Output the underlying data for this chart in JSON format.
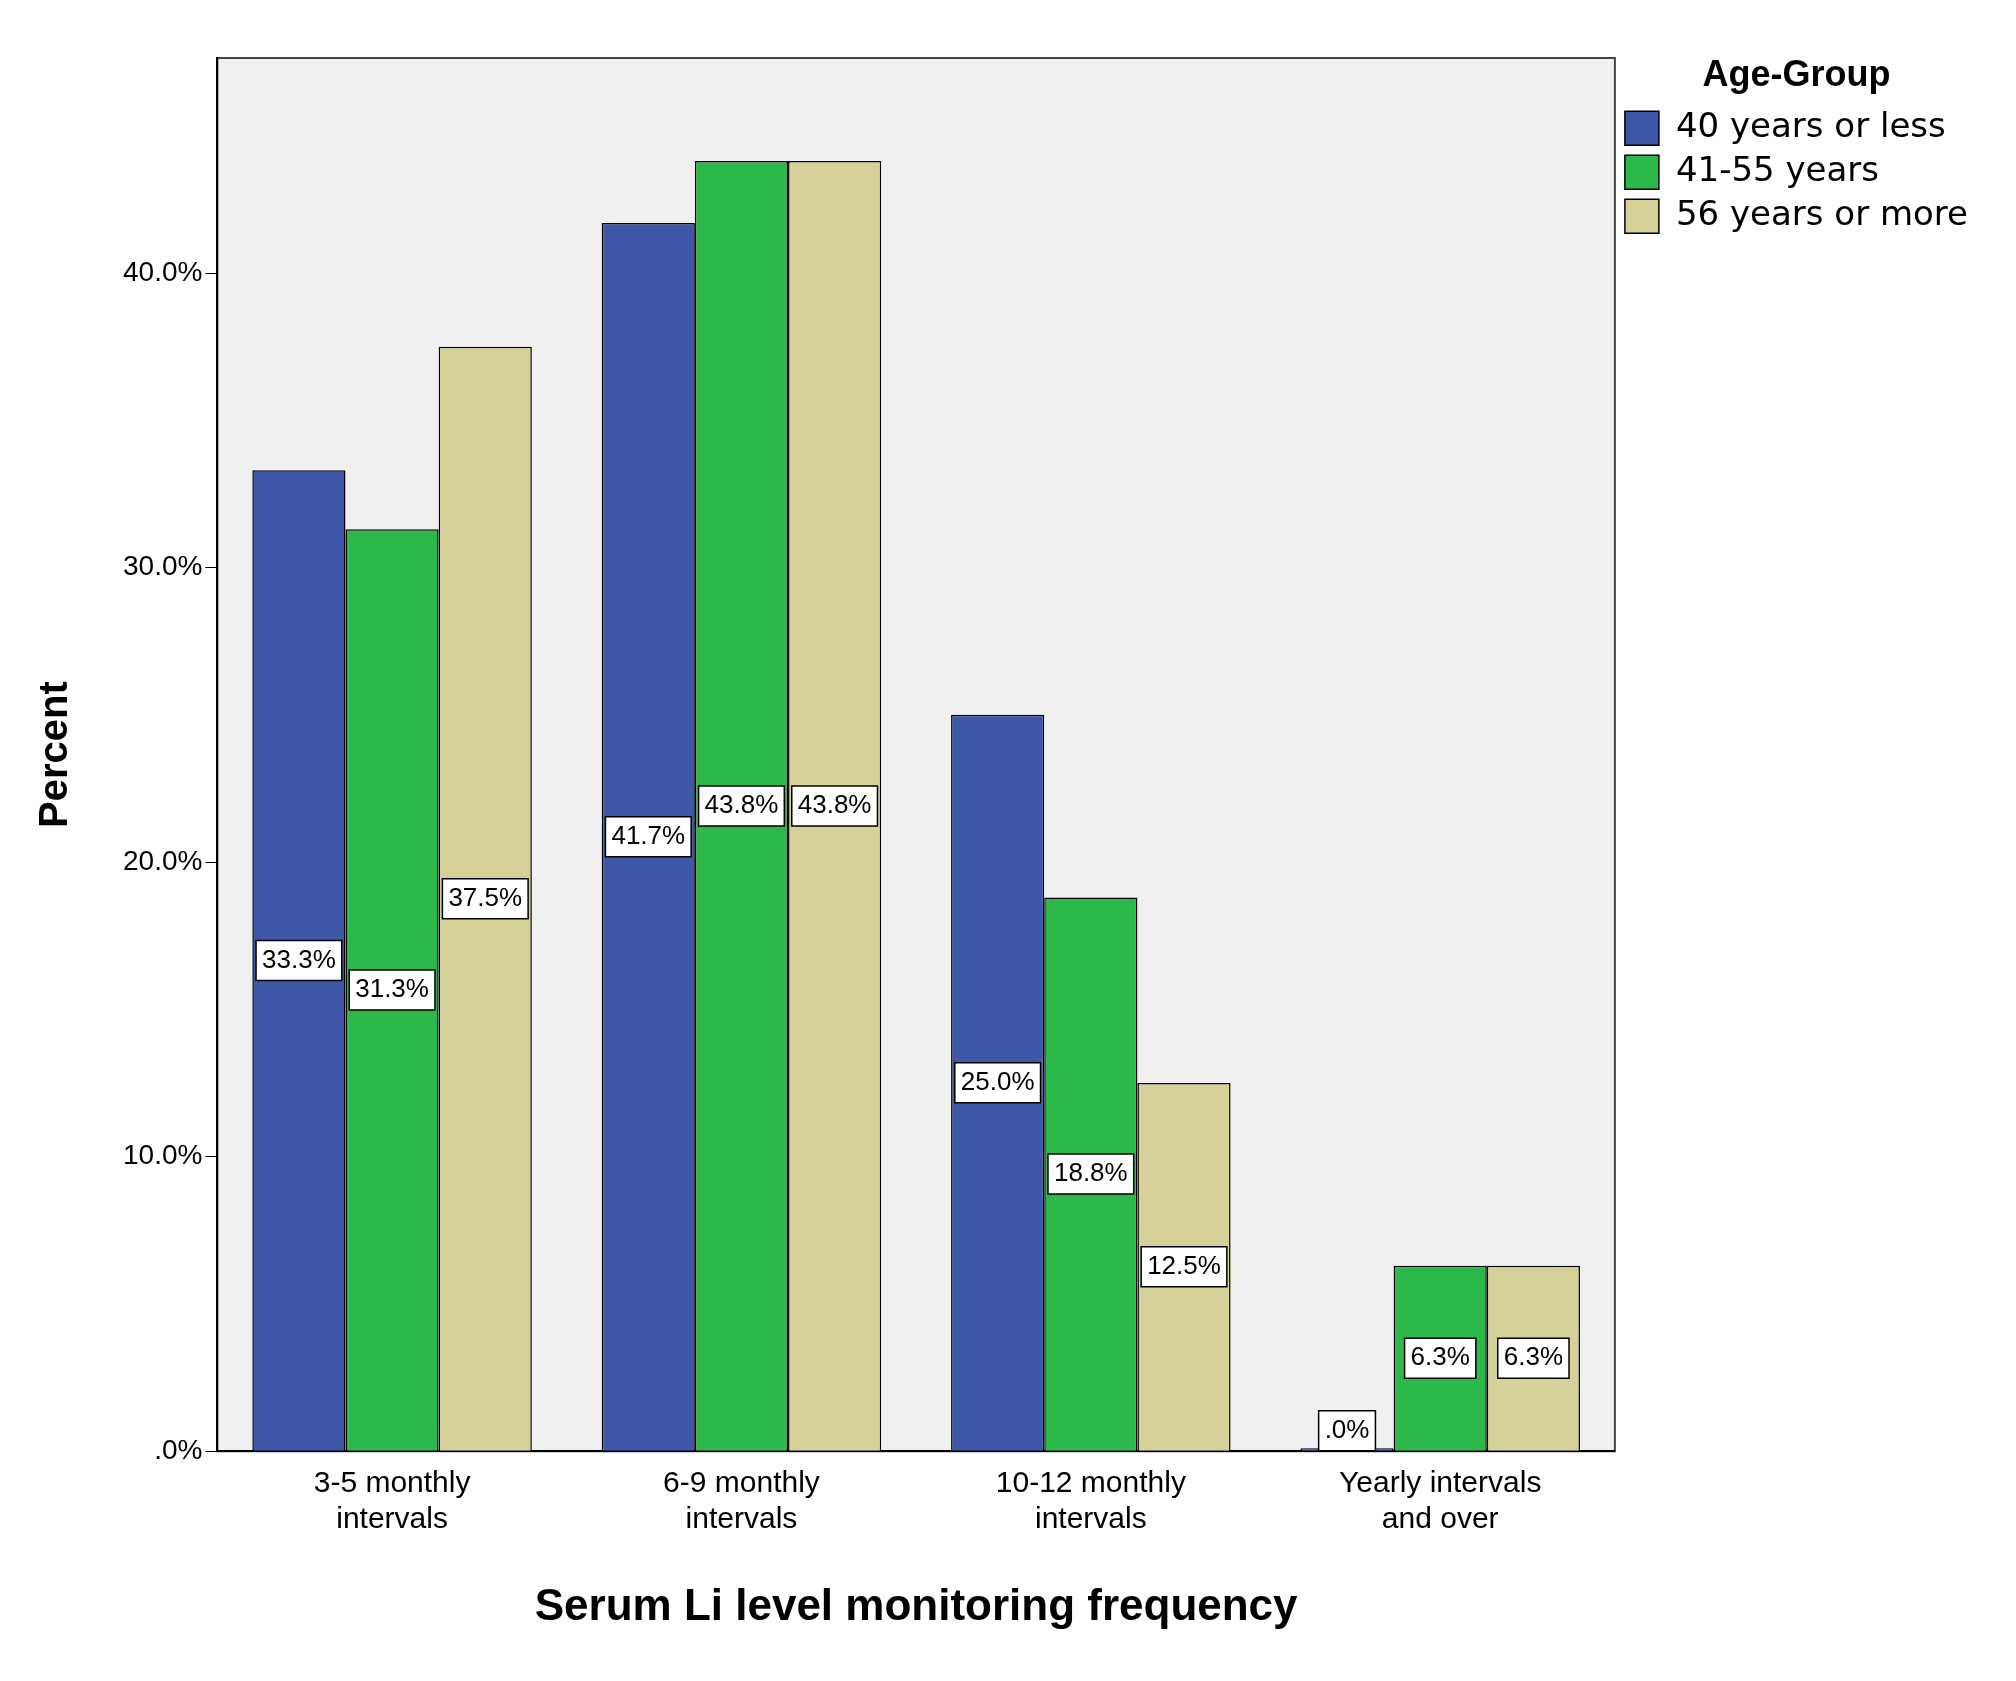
{
  "chart_data": {
    "type": "bar",
    "xlabel": "Serum Li level monitoring frequency",
    "ylabel": "Percent",
    "legend_title": "Age-Group",
    "legend": "top right",
    "categories": [
      "3-5 monthly intervals",
      "6-9 monthly intervals",
      "10-12 monthly intervals",
      "Yearly intervals and over"
    ],
    "series": [
      {
        "name": "40 years or less",
        "color": "#3f57a8",
        "values": [
          33.3,
          41.7,
          25.0,
          0
        ],
        "value_labels": [
          "33.3%",
          "41.7%",
          "25.0%",
          ".0%"
        ]
      },
      {
        "name": "41-55 years",
        "color": "#2db84a",
        "values": [
          31.3,
          43.8,
          18.8,
          6.3
        ],
        "value_labels": [
          "31.3%",
          "43.8%",
          "18.8%",
          "6.3%"
        ]
      },
      {
        "name": "56 years or more",
        "color": "#d6d099",
        "values": [
          37.5,
          43.8,
          12.5,
          6.3
        ],
        "value_labels": [
          "37.5%",
          "43.8%",
          "12.5%",
          "6.3%"
        ]
      }
    ],
    "ylim": [
      0,
      47.3
    ],
    "yticks": [
      {
        "value": 0,
        "label": ".0%"
      },
      {
        "value": 10,
        "label": "10.0%"
      },
      {
        "value": 20,
        "label": "20.0%"
      },
      {
        "value": 30,
        "label": "30.0%"
      },
      {
        "value": 40,
        "label": "40.0%"
      }
    ],
    "grid": false
  }
}
